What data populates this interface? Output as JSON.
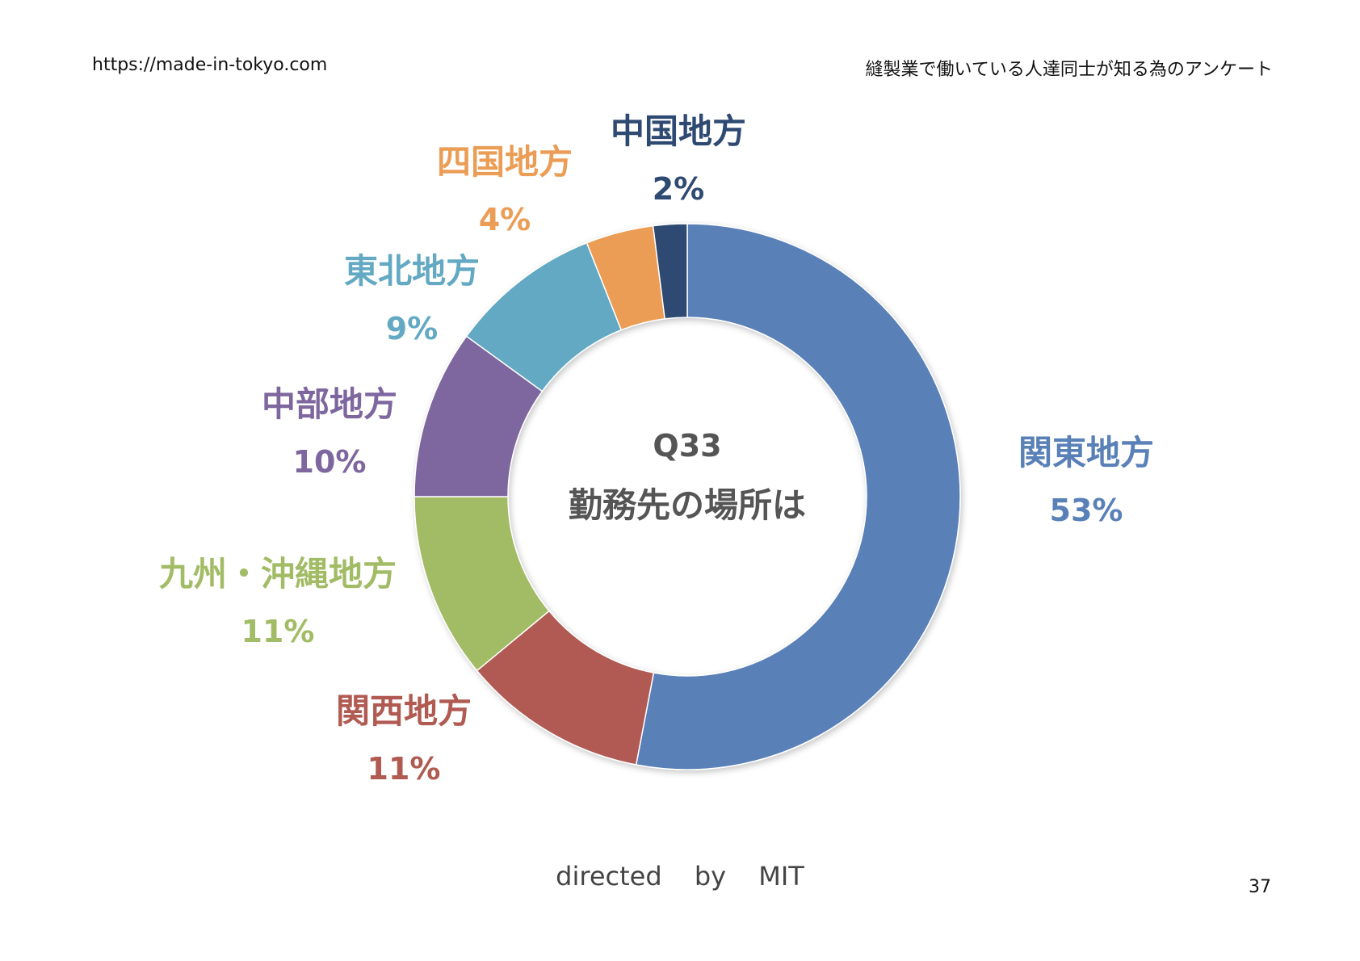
{
  "header": {
    "url": "https://made-in-tokyo.com",
    "survey_title": "縫製業で働いている人達同士が知る為のアンケート"
  },
  "chart_data": {
    "type": "pie",
    "donut": true,
    "center_question": "Q33",
    "center_title": "勤務先の場所は",
    "slices": [
      {
        "label": "関東地方",
        "value": 53,
        "value_label": "53%",
        "color": "#5a80b8"
      },
      {
        "label": "関西地方",
        "value": 11,
        "value_label": "11%",
        "color": "#b05a52"
      },
      {
        "label": "九州・沖縄地方",
        "value": 11,
        "value_label": "11%",
        "color": "#a2bc66"
      },
      {
        "label": "中部地方",
        "value": 10,
        "value_label": "10%",
        "color": "#7e669e"
      },
      {
        "label": "東北地方",
        "value": 9,
        "value_label": "9%",
        "color": "#63a9c3"
      },
      {
        "label": "四国地方",
        "value": 4,
        "value_label": "4%",
        "color": "#eb9d56"
      },
      {
        "label": "中国地方",
        "value": 2,
        "value_label": "2%",
        "color": "#2f4a72"
      }
    ]
  },
  "footer": {
    "credit": "directed by MIT",
    "page_number": "37"
  }
}
